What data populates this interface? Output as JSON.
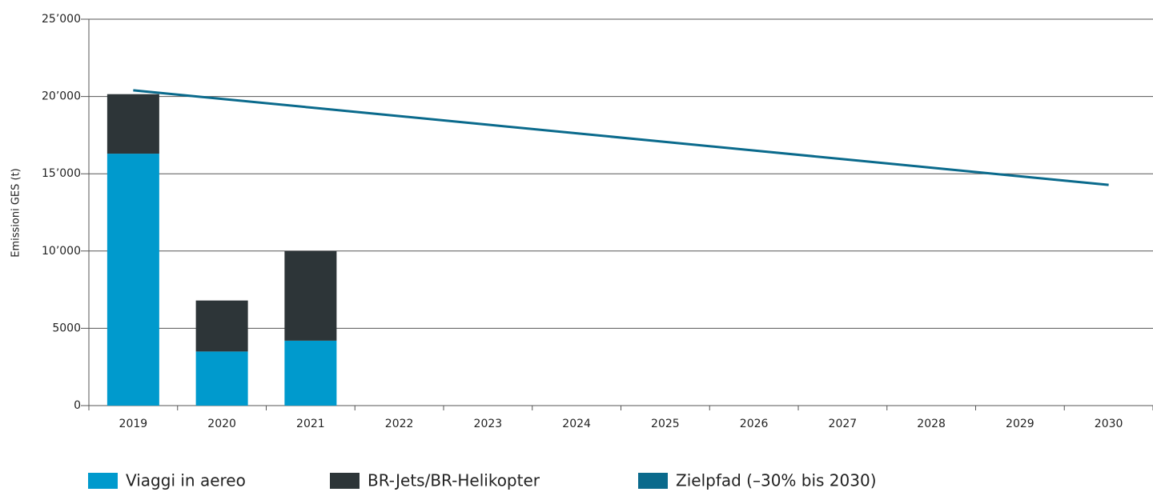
{
  "chart_data": {
    "type": "bar",
    "stacked": true,
    "ylabel": "Emissioni GES (t)",
    "categories": [
      "2019",
      "2020",
      "2021",
      "2022",
      "2023",
      "2024",
      "2025",
      "2026",
      "2027",
      "2028",
      "2029",
      "2030"
    ],
    "series": [
      {
        "name": "Viaggi in aereo",
        "color": "#009acd",
        "type": "bar",
        "values": [
          16300,
          3500,
          4200,
          null,
          null,
          null,
          null,
          null,
          null,
          null,
          null,
          null
        ]
      },
      {
        "name": "BR-Jets/BR-Helikopter",
        "color": "#2d3538",
        "type": "bar",
        "values": [
          3850,
          3300,
          5800,
          null,
          null,
          null,
          null,
          null,
          null,
          null,
          null,
          null
        ]
      },
      {
        "name": "Zielpfad (–30% bis 2030)",
        "color": "#0a6a8c",
        "type": "line",
        "values": [
          20400,
          19844,
          19287,
          18731,
          18175,
          17618,
          17062,
          16505,
          15949,
          15393,
          14836,
          14280
        ]
      }
    ],
    "ylim": [
      0,
      25000
    ],
    "yticks": [
      0,
      5000,
      {
        "value": 10000,
        "label": "10’000"
      },
      {
        "value": 15000,
        "label": "15’000"
      },
      {
        "value": 20000,
        "label": "20’000"
      },
      {
        "value": 25000,
        "label": "25’000"
      }
    ],
    "grid": true,
    "legend": "bottom"
  }
}
